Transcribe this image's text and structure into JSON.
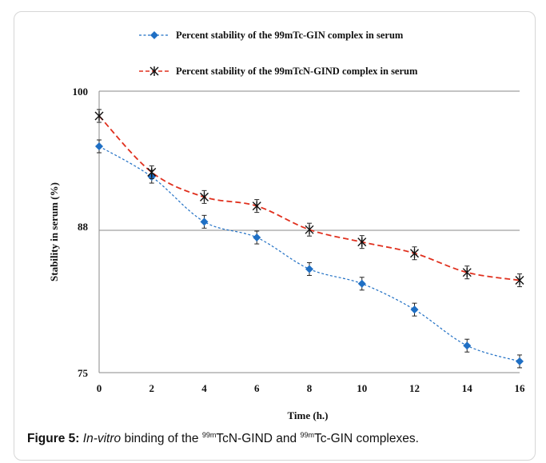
{
  "chart_data": {
    "type": "line",
    "title": "",
    "xlabel": "Time (h.)",
    "ylabel": "Stability in serum   (%)",
    "x": [
      0,
      2,
      4,
      6,
      8,
      10,
      12,
      14,
      16
    ],
    "xlim": [
      0,
      16
    ],
    "ylim": [
      75,
      100
    ],
    "x_ticks": [
      "0",
      "2",
      "4",
      "6",
      "8",
      "10",
      "12",
      "14",
      "16"
    ],
    "y_ticks": [
      "75",
      "88",
      "100"
    ],
    "y_tick_values": [
      75,
      88,
      100
    ],
    "grid": "horizontal at 88 and 100",
    "legend_position": "top",
    "series": [
      {
        "name": "Percent stability of the 99mTc-GIN complex in serum",
        "marker": "diamond",
        "color": "#1f6fc4",
        "line_style": "dashed",
        "values": [
          95.1,
          92.4,
          88.4,
          87.0,
          84.2,
          82.9,
          80.6,
          77.4,
          76.0
        ]
      },
      {
        "name": "Percent stability of the 99mTcN-GIND complex in serum",
        "marker": "asterisk",
        "color": "#e0301e",
        "line_style": "dashed",
        "values": [
          97.8,
          92.8,
          90.6,
          89.8,
          87.7,
          86.6,
          85.6,
          83.9,
          83.2
        ]
      }
    ]
  },
  "caption": {
    "label": "Figure 5:",
    "text_italic": "In-vitro",
    "text_a": " binding of the ",
    "sup1": "99m",
    "text_b": "TcN-GIND and ",
    "sup2": "99m",
    "text_c": "Tc-GIN complexes."
  }
}
